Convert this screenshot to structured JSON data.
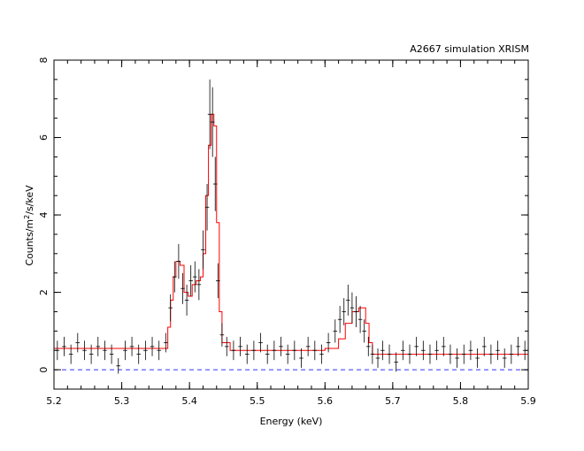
{
  "chart_data": {
    "type": "line",
    "title": "A2667 simulation XRISM",
    "xlabel": "Energy (keV)",
    "ylabel": "Counts/m2/s/keV",
    "ylabel_parts": {
      "base": "Counts/m",
      "sup": "2",
      "rest": "/s/keV"
    },
    "xlim": [
      5.2,
      5.9
    ],
    "ylim": [
      -0.5,
      8
    ],
    "x_ticks": [
      5.2,
      5.3,
      5.4,
      5.5,
      5.6,
      5.7,
      5.8,
      5.9
    ],
    "x_tick_labels": [
      "5.2",
      "5.3",
      "5.4",
      "5.5",
      "5.6",
      "5.7",
      "5.8",
      "5.9"
    ],
    "y_ticks": [
      0,
      2,
      4,
      6,
      8
    ],
    "y_tick_labels": [
      "0",
      "2",
      "4",
      "6",
      "8"
    ],
    "grid": false,
    "colors": {
      "data": "#000000",
      "model": "#ff0000",
      "baseline": "#3333ff"
    },
    "series": [
      {
        "kind": "data-with-errors",
        "x": [
          5.205,
          5.215,
          5.225,
          5.235,
          5.245,
          5.255,
          5.265,
          5.275,
          5.285,
          5.295,
          5.305,
          5.315,
          5.325,
          5.335,
          5.345,
          5.355,
          5.365,
          5.372,
          5.378,
          5.384,
          5.39,
          5.396,
          5.402,
          5.408,
          5.414,
          5.42,
          5.426,
          5.43,
          5.434,
          5.438,
          5.442,
          5.448,
          5.455,
          5.465,
          5.475,
          5.485,
          5.495,
          5.505,
          5.515,
          5.525,
          5.535,
          5.545,
          5.555,
          5.565,
          5.575,
          5.585,
          5.595,
          5.605,
          5.615,
          5.622,
          5.628,
          5.634,
          5.64,
          5.646,
          5.652,
          5.658,
          5.664,
          5.67,
          5.678,
          5.685,
          5.695,
          5.705,
          5.715,
          5.725,
          5.735,
          5.745,
          5.755,
          5.765,
          5.775,
          5.785,
          5.795,
          5.805,
          5.815,
          5.825,
          5.835,
          5.845,
          5.855,
          5.865,
          5.875,
          5.885,
          5.895
        ],
        "y": [
          0.5,
          0.6,
          0.4,
          0.7,
          0.5,
          0.4,
          0.6,
          0.5,
          0.4,
          0.1,
          0.5,
          0.6,
          0.4,
          0.5,
          0.6,
          0.5,
          0.7,
          1.6,
          2.4,
          2.8,
          2.1,
          1.8,
          2.3,
          2.4,
          2.2,
          3.1,
          4.2,
          6.6,
          6.4,
          4.8,
          2.3,
          0.9,
          0.6,
          0.5,
          0.6,
          0.4,
          0.5,
          0.7,
          0.4,
          0.5,
          0.6,
          0.4,
          0.5,
          0.3,
          0.6,
          0.5,
          0.4,
          0.7,
          1.0,
          1.3,
          1.5,
          1.8,
          1.6,
          1.5,
          1.3,
          1.0,
          0.6,
          0.4,
          0.3,
          0.5,
          0.4,
          0.2,
          0.5,
          0.4,
          0.6,
          0.5,
          0.4,
          0.5,
          0.6,
          0.4,
          0.3,
          0.4,
          0.5,
          0.3,
          0.6,
          0.4,
          0.5,
          0.3,
          0.4,
          0.6,
          0.5
        ],
        "yerr": [
          0.25,
          0.25,
          0.25,
          0.25,
          0.25,
          0.25,
          0.25,
          0.25,
          0.25,
          0.2,
          0.25,
          0.25,
          0.25,
          0.25,
          0.25,
          0.25,
          0.25,
          0.35,
          0.4,
          0.45,
          0.4,
          0.4,
          0.4,
          0.4,
          0.4,
          0.5,
          0.6,
          0.9,
          0.9,
          0.7,
          0.45,
          0.3,
          0.25,
          0.25,
          0.25,
          0.25,
          0.25,
          0.25,
          0.25,
          0.25,
          0.25,
          0.25,
          0.25,
          0.25,
          0.25,
          0.25,
          0.25,
          0.25,
          0.3,
          0.35,
          0.35,
          0.4,
          0.4,
          0.4,
          0.35,
          0.3,
          0.25,
          0.25,
          0.25,
          0.25,
          0.25,
          0.25,
          0.25,
          0.25,
          0.25,
          0.25,
          0.25,
          0.25,
          0.25,
          0.25,
          0.25,
          0.25,
          0.25,
          0.25,
          0.25,
          0.25,
          0.25,
          0.25,
          0.25,
          0.25,
          0.25
        ],
        "xerr": 0.003
      },
      {
        "kind": "model-step",
        "x": [
          5.2,
          5.36,
          5.368,
          5.372,
          5.376,
          5.38,
          5.386,
          5.392,
          5.398,
          5.404,
          5.41,
          5.416,
          5.42,
          5.424,
          5.428,
          5.432,
          5.436,
          5.44,
          5.444,
          5.448,
          5.46,
          5.6,
          5.62,
          5.63,
          5.64,
          5.65,
          5.66,
          5.665,
          5.67,
          5.9
        ],
        "y": [
          0.55,
          0.55,
          1.1,
          1.8,
          2.4,
          2.8,
          2.7,
          2.0,
          1.9,
          2.2,
          2.3,
          2.4,
          3.0,
          4.5,
          5.8,
          6.6,
          6.3,
          3.8,
          1.5,
          0.7,
          0.5,
          0.55,
          0.8,
          1.2,
          1.5,
          1.6,
          1.2,
          0.7,
          0.4,
          0.45
        ]
      },
      {
        "kind": "baseline",
        "y": 0
      }
    ]
  }
}
